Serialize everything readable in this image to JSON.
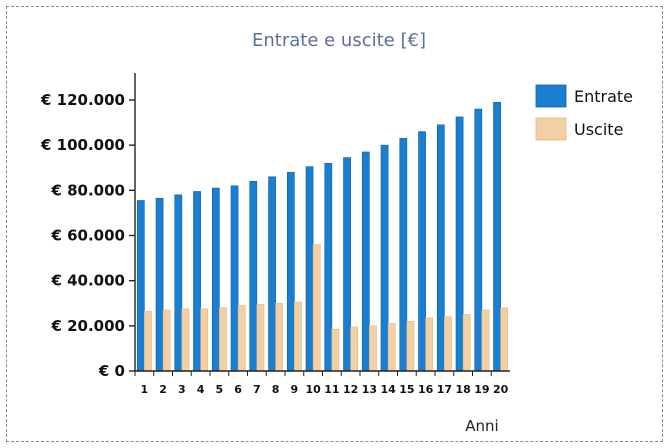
{
  "chart_data": {
    "type": "bar",
    "title": "Entrate e uscite [€]",
    "xlabel": "Anni",
    "ylabel": "",
    "categories": [
      "1",
      "2",
      "3",
      "4",
      "5",
      "6",
      "7",
      "8",
      "9",
      "10",
      "11",
      "12",
      "13",
      "14",
      "15",
      "16",
      "17",
      "18",
      "19",
      "20"
    ],
    "ylim": [
      0,
      120000
    ],
    "yticks": [
      0,
      20000,
      40000,
      60000,
      80000,
      100000,
      120000
    ],
    "ytick_labels": [
      "€ 0",
      "€ 20.000",
      "€ 40.000",
      "€ 60.000",
      "€ 80.000",
      "€ 100.000",
      "€ 120.000"
    ],
    "legend_position": "right",
    "grid": false,
    "series": [
      {
        "name": "Entrate",
        "color": "#1a7fd0",
        "values": [
          75500,
          76500,
          78000,
          79500,
          81000,
          82000,
          84000,
          86000,
          88000,
          90500,
          92000,
          94500,
          97000,
          100000,
          103000,
          106000,
          109000,
          112500,
          116000,
          119000
        ]
      },
      {
        "name": "Uscite",
        "color": "#f3cfa4",
        "values": [
          26500,
          27000,
          27500,
          27500,
          28000,
          29000,
          29500,
          30000,
          30500,
          56000,
          18500,
          19500,
          20000,
          21000,
          22000,
          23500,
          24000,
          25000,
          27000,
          28000
        ]
      }
    ]
  }
}
